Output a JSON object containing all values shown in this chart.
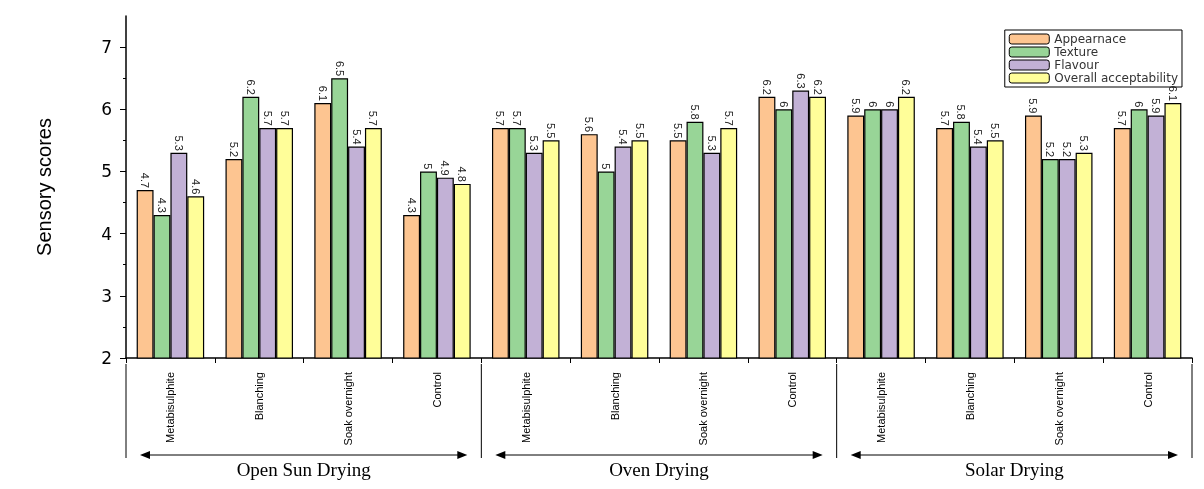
{
  "chart_data": {
    "type": "bar",
    "ylabel": "Sensory scores",
    "categories": [
      "Metabisulphite",
      "Blanching",
      "Soak overnight",
      "Control",
      "Metabisulphite",
      "Blanching",
      "Soak overnight",
      "Control",
      "Metabisulphite",
      "Blanching",
      "Soak overnight",
      "Control"
    ],
    "series": [
      {
        "name": "Appearnace",
        "color": "#fdc591",
        "values": [
          4.7,
          5.2,
          6.1,
          4.3,
          5.7,
          5.6,
          5.5,
          6.2,
          5.9,
          5.7,
          5.9,
          5.7
        ]
      },
      {
        "name": "Texture",
        "color": "#98d597",
        "values": [
          4.3,
          6.2,
          6.5,
          5,
          5.7,
          5,
          5.8,
          6,
          6,
          5.8,
          5.2,
          6
        ]
      },
      {
        "name": "Flavour",
        "color": "#c2b1d6",
        "values": [
          5.3,
          5.7,
          5.4,
          4.9,
          5.3,
          5.4,
          5.3,
          6.3,
          6,
          5.4,
          5.2,
          5.9
        ]
      },
      {
        "name": "Overall acceptability",
        "color": "#fffe99",
        "values": [
          4.6,
          5.7,
          5.7,
          4.8,
          5.5,
          5.5,
          5.7,
          6.2,
          6.2,
          5.5,
          5.3,
          6.1
        ]
      }
    ],
    "annotations": [
      "Open Sun Drying",
      "Oven Drying",
      "Solar Drying"
    ],
    "ylim": [
      2,
      7.5
    ],
    "yticks": [
      2,
      3,
      4,
      5,
      6,
      7
    ],
    "data_labels": true,
    "grid": false,
    "legend": "top right"
  }
}
